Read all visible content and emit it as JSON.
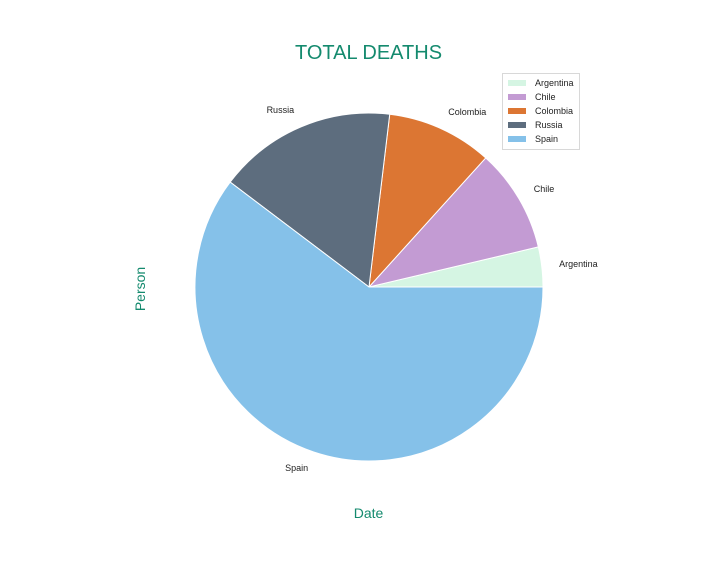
{
  "chart_data": {
    "type": "pie",
    "title": "TOTAL DEATHS",
    "xlabel": "Date",
    "ylabel": "Person",
    "start_angle_deg": 0,
    "direction": "counterclockwise",
    "legend_position": "top-right",
    "slices": [
      {
        "label": "Argentina",
        "value": 3.7,
        "color": "#d5f5e3"
      },
      {
        "label": "Chile",
        "value": 9.6,
        "color": "#c39bd3"
      },
      {
        "label": "Colombia",
        "value": 9.8,
        "color": "#dc7633"
      },
      {
        "label": "Russia",
        "value": 16.6,
        "color": "#5d6d7e"
      },
      {
        "label": "Spain",
        "value": 60.3,
        "color": "#85c1e9"
      }
    ]
  }
}
